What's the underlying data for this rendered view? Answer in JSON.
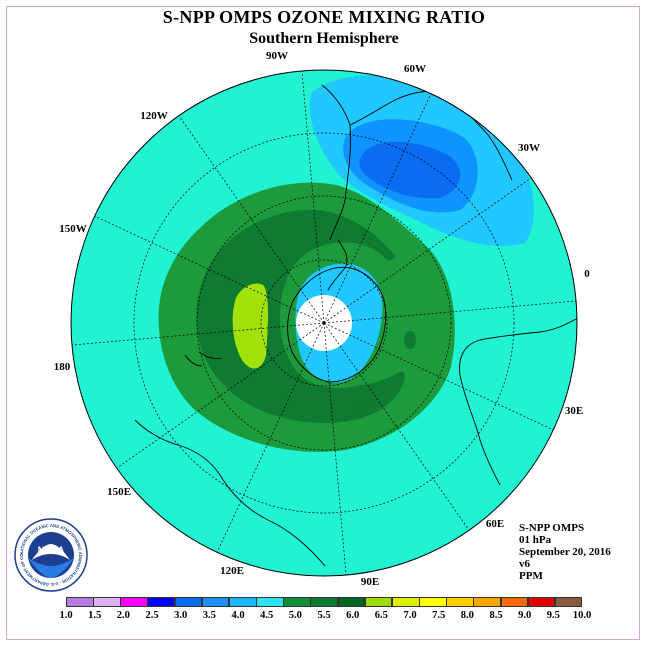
{
  "title": "S-NPP OMPS OZONE MIXING RATIO",
  "subtitle": "Southern Hemisphere",
  "longitude_labels": [
    "90W",
    "60W",
    "30W",
    "0",
    "30E",
    "60E",
    "90E",
    "120E",
    "150E",
    "180",
    "150W",
    "120W"
  ],
  "info": {
    "instrument": "S-NPP OMPS",
    "level": "01 hPa",
    "date": "September 20, 2016",
    "version": "v6",
    "units": "PPM"
  },
  "logo": {
    "text": "NOAA",
    "ring_text": "NATIONAL OCEANIC AND ATMOSPHERIC ADMINISTRATION · U.S. DEPARTMENT OF COMMERCE"
  },
  "colorbar": {
    "ticks": [
      "1.0",
      "1.5",
      "2.0",
      "2.5",
      "3.0",
      "3.5",
      "4.0",
      "4.5",
      "5.0",
      "5.5",
      "6.0",
      "6.5",
      "7.0",
      "7.5",
      "8.0",
      "8.5",
      "9.0",
      "9.5",
      "10.0"
    ],
    "colors": [
      "#b57be0",
      "#dcb1f0",
      "#ff00ff",
      "#0000ff",
      "#0a6cf0",
      "#1e90ff",
      "#1ab8ff",
      "#2fe3f2",
      "#0f8f3a",
      "#0b7a32",
      "#006422",
      "#a0dc0a",
      "#dcf000",
      "#ffff00",
      "#ffd000",
      "#ffa500",
      "#ff6a00",
      "#e00000",
      "#8b5a3c"
    ]
  },
  "map_colors": {
    "ocean_background": "#20f2d2",
    "ring_outer": "#1c9a3c",
    "ring_inner": "#0f7a31",
    "max_region": "#a2e20a",
    "light_blue": "#20c8ff",
    "mid_blue": "#0f94ff",
    "dark_blue": "#0a6cf0",
    "pole_missing": "#ffffff"
  }
}
